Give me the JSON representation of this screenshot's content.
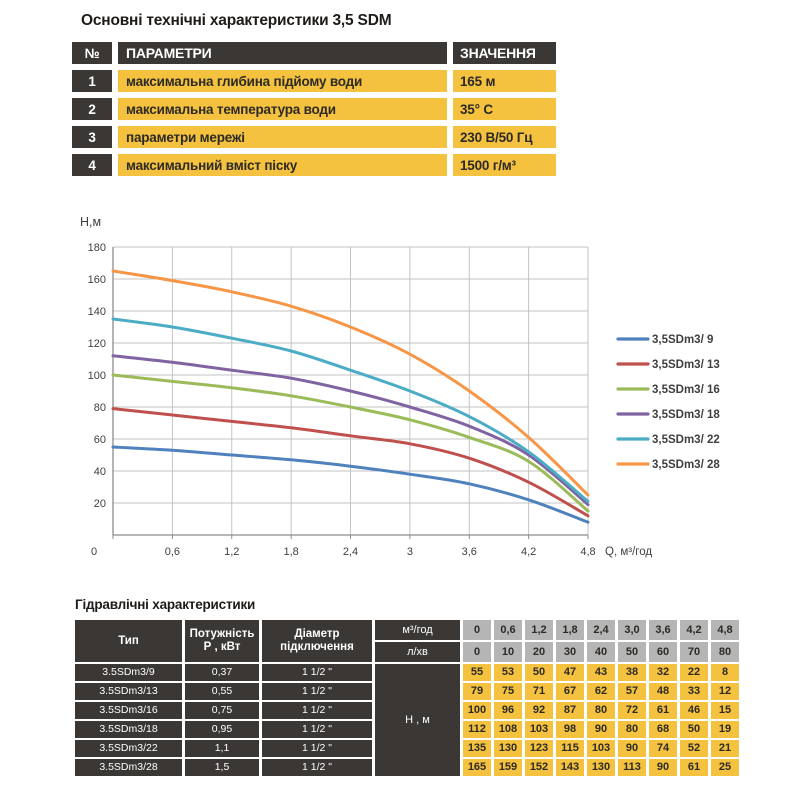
{
  "top_section": {
    "title": "Основні технічні характеристики 3,5 SDM",
    "table": {
      "headers": {
        "num": "№",
        "param": "ПАРАМЕТРИ",
        "value": "ЗНАЧЕННЯ"
      },
      "rows": [
        {
          "num": "1",
          "param": "максимальна глибина підйому води",
          "value": "165 м"
        },
        {
          "num": "2",
          "param": "максимальна температура води",
          "value": "35° С"
        },
        {
          "num": "3",
          "param": "параметри мережі",
          "value": "230 В/50 Гц"
        },
        {
          "num": "4",
          "param": "максимальний вміст піску",
          "value": "1500 г/м³"
        }
      ]
    }
  },
  "chart_data": {
    "type": "line",
    "title": "",
    "xlabel": "Q, м³/год",
    "ylabel": "Н,м",
    "x": [
      0,
      0.6,
      1.2,
      1.8,
      2.4,
      3.0,
      3.6,
      4.2,
      4.8
    ],
    "x_tick_labels": [
      "0",
      "0,6",
      "1,2",
      "1,8",
      "2,4",
      "3",
      "3,6",
      "4,2",
      "4,8"
    ],
    "xlim": [
      0,
      4.8
    ],
    "ylim": [
      0,
      180
    ],
    "y_tick_step": 20,
    "grid": true,
    "legend_position": "right",
    "series": [
      {
        "name": "3,5SDm3/ 9",
        "color": "#4F81BD",
        "values": [
          55,
          53,
          50,
          47,
          43,
          38,
          32,
          22,
          8
        ]
      },
      {
        "name": "3,5SDm3/ 13",
        "color": "#C0504D",
        "values": [
          79,
          75,
          71,
          67,
          62,
          57,
          48,
          33,
          12
        ]
      },
      {
        "name": "3,5SDm3/ 16",
        "color": "#9BBB59",
        "values": [
          100,
          96,
          92,
          87,
          80,
          72,
          61,
          46,
          15
        ]
      },
      {
        "name": "3,5SDm3/ 18",
        "color": "#8064A2",
        "values": [
          112,
          108,
          103,
          98,
          90,
          80,
          68,
          50,
          19
        ]
      },
      {
        "name": "3,5SDm3/ 22",
        "color": "#4BACC6",
        "values": [
          135,
          130,
          123,
          115,
          103,
          90,
          74,
          52,
          21
        ]
      },
      {
        "name": "3,5SDm3/ 28",
        "color": "#F79646",
        "values": [
          165,
          159,
          152,
          143,
          130,
          113,
          90,
          61,
          25
        ]
      }
    ]
  },
  "bottom_section": {
    "title": "Гідравлічні характеристики",
    "table": {
      "type_header": "Тип",
      "power_header_line1": "Потужність",
      "power_header_line2": "Р , кВт",
      "diameter_header_line1": "Діаметр",
      "diameter_header_line2": "підключення",
      "flow_m3_label": "м³/год",
      "flow_lmin_label": "л/хв",
      "flow_m3_values": [
        "0",
        "0,6",
        "1,2",
        "1,8",
        "2,4",
        "3,0",
        "3,6",
        "4,2",
        "4,8"
      ],
      "flow_lmin_values": [
        "0",
        "10",
        "20",
        "30",
        "40",
        "50",
        "60",
        "70",
        "80"
      ],
      "head_label": "Н , м",
      "rows": [
        {
          "type": "3.5SDm3/9",
          "power": "0,37",
          "diameter": "1 1/2 \"",
          "values": [
            "55",
            "53",
            "50",
            "47",
            "43",
            "38",
            "32",
            "22",
            "8"
          ]
        },
        {
          "type": "3.5SDm3/13",
          "power": "0,55",
          "diameter": "1 1/2 \"",
          "values": [
            "79",
            "75",
            "71",
            "67",
            "62",
            "57",
            "48",
            "33",
            "12"
          ]
        },
        {
          "type": "3.5SDm3/16",
          "power": "0,75",
          "diameter": "1 1/2 \"",
          "values": [
            "100",
            "96",
            "92",
            "87",
            "80",
            "72",
            "61",
            "46",
            "15"
          ]
        },
        {
          "type": "3.5SDm3/18",
          "power": "0,95",
          "diameter": "1 1/2 \"",
          "values": [
            "112",
            "108",
            "103",
            "98",
            "90",
            "80",
            "68",
            "50",
            "19"
          ]
        },
        {
          "type": "3.5SDm3/22",
          "power": "1,1",
          "diameter": "1 1/2 \"",
          "values": [
            "135",
            "130",
            "123",
            "115",
            "103",
            "90",
            "74",
            "52",
            "21"
          ]
        },
        {
          "type": "3.5SDm3/28",
          "power": "1,5",
          "diameter": "1 1/2 \"",
          "values": [
            "165",
            "159",
            "152",
            "143",
            "130",
            "113",
            "90",
            "61",
            "25"
          ]
        }
      ]
    },
    "colors": {
      "dark": "#3b3734",
      "yellow": "#f4c23f",
      "gray": "#b5b5b5"
    }
  }
}
